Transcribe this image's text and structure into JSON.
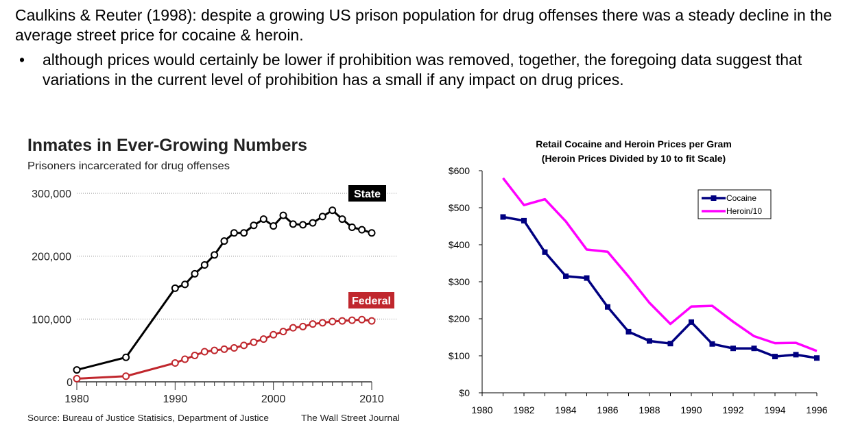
{
  "slide": {
    "intro": "Caulkins & Reuter (1998): despite a growing US prison population for drug offenses there was a steady decline in the average street price for cocaine & heroin.",
    "bullet_symbol": "•",
    "bullet": "although prices would certainly be lower if prohibition was removed, together, the foregoing data suggest that variations in the current level of prohibition has a small if any impact on drug prices."
  },
  "chart_data": [
    {
      "type": "line",
      "title": "Inmates in Ever-Growing Numbers",
      "subtitle": "Prisoners incarcerated for drug offenses",
      "xlabel": "",
      "ylabel": "",
      "ylim": [
        0,
        300000
      ],
      "xlim": [
        1980,
        2011
      ],
      "x_ticks": [
        "1980",
        "1990",
        "2000",
        "2010"
      ],
      "y_ticks": [
        "0",
        "100,000",
        "200,000",
        "300,000"
      ],
      "grid": "dotted horizontal",
      "series": [
        {
          "name": "State",
          "color": "#000000",
          "label_bg": "#000000",
          "points": [
            [
              1980,
              19000
            ],
            [
              1985,
              39000
            ],
            [
              1990,
              149000
            ],
            [
              1991,
              155000
            ],
            [
              1992,
              172000
            ],
            [
              1993,
              186000
            ],
            [
              1994,
              202000
            ],
            [
              1995,
              224000
            ],
            [
              1996,
              237000
            ],
            [
              1997,
              237000
            ],
            [
              1998,
              249000
            ],
            [
              1999,
              259000
            ],
            [
              2000,
              248000
            ],
            [
              2001,
              265000
            ],
            [
              2002,
              251000
            ],
            [
              2003,
              250000
            ],
            [
              2004,
              253000
            ],
            [
              2005,
              263000
            ],
            [
              2006,
              273000
            ],
            [
              2007,
              259000
            ],
            [
              2008,
              246000
            ],
            [
              2009,
              242000
            ],
            [
              2010,
              237000
            ]
          ]
        },
        {
          "name": "Federal",
          "color": "#c0272d",
          "label_bg": "#c0272d",
          "points": [
            [
              1980,
              5000
            ],
            [
              1985,
              9000
            ],
            [
              1990,
              30000
            ],
            [
              1991,
              36000
            ],
            [
              1992,
              42000
            ],
            [
              1993,
              48000
            ],
            [
              1994,
              50000
            ],
            [
              1995,
              52000
            ],
            [
              1996,
              54000
            ],
            [
              1997,
              58000
            ],
            [
              1998,
              63000
            ],
            [
              1999,
              68000
            ],
            [
              2000,
              75000
            ],
            [
              2001,
              80000
            ],
            [
              2002,
              86000
            ],
            [
              2003,
              88000
            ],
            [
              2004,
              92000
            ],
            [
              2005,
              94000
            ],
            [
              2006,
              96000
            ],
            [
              2007,
              97000
            ],
            [
              2008,
              98000
            ],
            [
              2009,
              99000
            ],
            [
              2010,
              97000
            ]
          ]
        }
      ],
      "source": "Source: Bureau of Justice Statisics, Department of Justice",
      "publisher": "The Wall Street Journal"
    },
    {
      "type": "line",
      "title": "Retail Cocaine and Heroin Prices per Gram",
      "subtitle": "(Heroin Prices Divided by 10 to fit Scale)",
      "xlabel": "",
      "ylabel": "",
      "ylim": [
        0,
        600
      ],
      "xlim": [
        1980,
        1996
      ],
      "x_ticks": [
        "1980",
        "1982",
        "1984",
        "1986",
        "1988",
        "1990",
        "1992",
        "1994",
        "1996"
      ],
      "y_ticks": [
        "$0",
        "$100",
        "$200",
        "$300",
        "$400",
        "$500",
        "$600"
      ],
      "grid": "none",
      "legend_position": "top-right",
      "series": [
        {
          "name": "Cocaine",
          "color": "#000080",
          "marker": "square",
          "points": [
            [
              1981,
              475
            ],
            [
              1982,
              465
            ],
            [
              1983,
              380
            ],
            [
              1984,
              315
            ],
            [
              1985,
              310
            ],
            [
              1986,
              232
            ],
            [
              1987,
              165
            ],
            [
              1988,
              140
            ],
            [
              1989,
              133
            ],
            [
              1990,
              191
            ],
            [
              1991,
              132
            ],
            [
              1992,
              120
            ],
            [
              1993,
              120
            ],
            [
              1994,
              98
            ],
            [
              1995,
              103
            ],
            [
              1996,
              94
            ]
          ]
        },
        {
          "name": "Heroin/10",
          "color": "#ff00ff",
          "marker": "none",
          "points": [
            [
              1981,
              580
            ],
            [
              1982,
              507
            ],
            [
              1983,
              523
            ],
            [
              1984,
              463
            ],
            [
              1985,
              387
            ],
            [
              1986,
              381
            ],
            [
              1987,
              314
            ],
            [
              1988,
              243
            ],
            [
              1989,
              186
            ],
            [
              1990,
              233
            ],
            [
              1991,
              235
            ],
            [
              1992,
              192
            ],
            [
              1993,
              153
            ],
            [
              1994,
              134
            ],
            [
              1995,
              135
            ],
            [
              1996,
              113
            ]
          ]
        }
      ]
    }
  ]
}
